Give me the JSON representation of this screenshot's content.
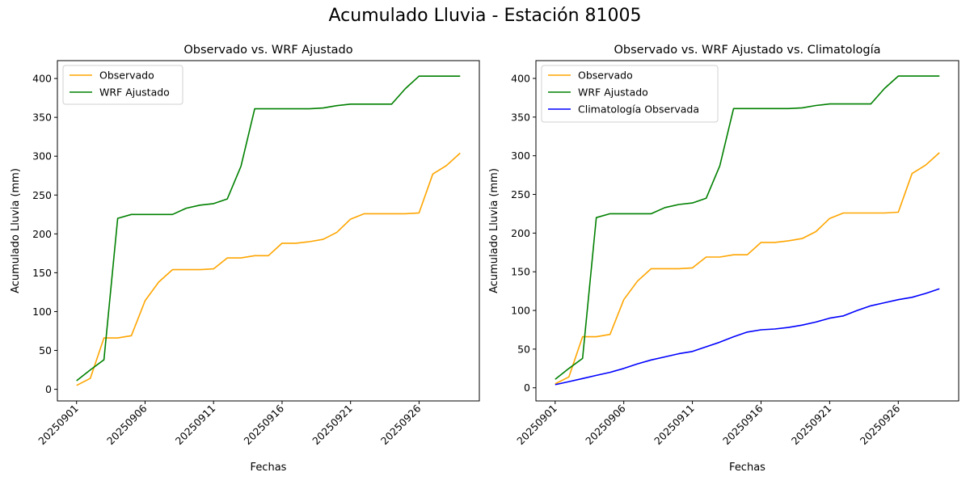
{
  "figure": {
    "suptitle": "Acumulado Lluvia - Estación 81005"
  },
  "colors": {
    "observado": "#ffa500",
    "wrf": "#008000",
    "climatologia": "#0000ff"
  },
  "chart_data": [
    {
      "type": "line",
      "title": "Observado vs. WRF Ajustado",
      "xlabel": "Fechas",
      "ylabel": "Acumulado Lluvia (mm)",
      "x": [
        "20250901",
        "20250902",
        "20250903",
        "20250904",
        "20250905",
        "20250906",
        "20250907",
        "20250908",
        "20250909",
        "20250910",
        "20250911",
        "20250912",
        "20250913",
        "20250914",
        "20250915",
        "20250916",
        "20250917",
        "20250918",
        "20250919",
        "20250920",
        "20250921",
        "20250922",
        "20250923",
        "20250924",
        "20250925",
        "20250926",
        "20250927",
        "20250928",
        "20250929"
      ],
      "xticks": [
        "20250901",
        "20250906",
        "20250911",
        "20250916",
        "20250921",
        "20250926"
      ],
      "yticks": [
        0,
        50,
        100,
        150,
        200,
        250,
        300,
        350,
        400
      ],
      "ylim": [
        -15,
        423
      ],
      "legend": "top-left",
      "series": [
        {
          "name": "Observado",
          "color": "#ffa500",
          "values": [
            5,
            14,
            66,
            66,
            69,
            114,
            138,
            154,
            154,
            154,
            155,
            169,
            169,
            172,
            172,
            188,
            188,
            190,
            193,
            202,
            219,
            226,
            226,
            226,
            226,
            227,
            277,
            288,
            304
          ]
        },
        {
          "name": "WRF Ajustado",
          "color": "#008000",
          "values": [
            11,
            25,
            38,
            220,
            225,
            225,
            225,
            225,
            233,
            237,
            239,
            245,
            287,
            361,
            361,
            361,
            361,
            361,
            362,
            365,
            367,
            367,
            367,
            367,
            387,
            403,
            403,
            403,
            403
          ]
        }
      ]
    },
    {
      "type": "line",
      "title": "Observado vs. WRF Ajustado vs. Climatología",
      "xlabel": "Fechas",
      "ylabel": "Acumulado Lluvia (mm)",
      "x": [
        "20250901",
        "20250902",
        "20250903",
        "20250904",
        "20250905",
        "20250906",
        "20250907",
        "20250908",
        "20250909",
        "20250910",
        "20250911",
        "20250912",
        "20250913",
        "20250914",
        "20250915",
        "20250916",
        "20250917",
        "20250918",
        "20250919",
        "20250920",
        "20250921",
        "20250922",
        "20250923",
        "20250924",
        "20250925",
        "20250926",
        "20250927",
        "20250928",
        "20250929"
      ],
      "xticks": [
        "20250901",
        "20250906",
        "20250911",
        "20250916",
        "20250921",
        "20250926"
      ],
      "yticks": [
        0,
        50,
        100,
        150,
        200,
        250,
        300,
        350,
        400
      ],
      "ylim": [
        -17,
        423
      ],
      "legend": "top-left",
      "series": [
        {
          "name": "Observado",
          "color": "#ffa500",
          "values": [
            5,
            14,
            66,
            66,
            69,
            114,
            138,
            154,
            154,
            154,
            155,
            169,
            169,
            172,
            172,
            188,
            188,
            190,
            193,
            202,
            219,
            226,
            226,
            226,
            226,
            227,
            277,
            288,
            304
          ]
        },
        {
          "name": "WRF Ajustado",
          "color": "#008000",
          "values": [
            11,
            25,
            38,
            220,
            225,
            225,
            225,
            225,
            233,
            237,
            239,
            245,
            287,
            361,
            361,
            361,
            361,
            361,
            362,
            365,
            367,
            367,
            367,
            367,
            387,
            403,
            403,
            403,
            403
          ]
        },
        {
          "name": "Climatología Observada",
          "color": "#0000ff",
          "values": [
            4,
            8,
            12,
            16,
            20,
            25,
            31,
            36,
            40,
            44,
            47,
            53,
            59,
            66,
            72,
            75,
            76,
            78,
            81,
            85,
            90,
            93,
            100,
            106,
            110,
            114,
            117,
            122,
            128
          ]
        }
      ]
    }
  ]
}
